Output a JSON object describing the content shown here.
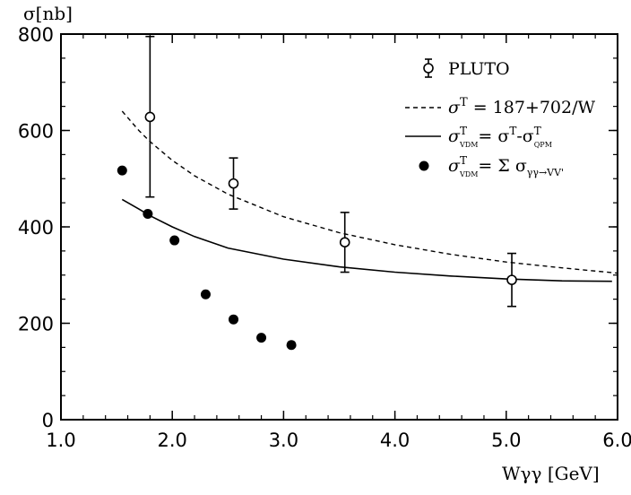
{
  "chart_data": {
    "type": "scatter",
    "y_axis_label": "σ[nb]",
    "x_axis_label": "Wγγ [GeV]",
    "xlim": [
      1.0,
      6.0
    ],
    "ylim": [
      0,
      800
    ],
    "x_ticks": [
      "1.0",
      "2.0",
      "3.0",
      "4.0",
      "5.0",
      "6.0"
    ],
    "y_ticks": [
      "0",
      "200",
      "400",
      "600",
      "800"
    ],
    "legend_position": "top-right",
    "series": [
      {
        "name": "PLUTO",
        "kind": "points-errorbars",
        "marker": "open-circle",
        "points": [
          {
            "x": 1.8,
            "y": 628,
            "ylo": 462,
            "yhi": 795
          },
          {
            "x": 2.55,
            "y": 490,
            "ylo": 437,
            "yhi": 543
          },
          {
            "x": 3.55,
            "y": 368,
            "ylo": 306,
            "yhi": 430
          },
          {
            "x": 5.05,
            "y": 290,
            "ylo": 235,
            "yhi": 345
          }
        ]
      },
      {
        "name": "σT = 187+702/W",
        "kind": "line",
        "style": "dashed",
        "x": [
          1.55,
          1.7,
          1.8,
          2.0,
          2.2,
          2.5,
          3.0,
          3.5,
          4.0,
          4.5,
          5.0,
          5.5,
          6.0
        ],
        "y": [
          640,
          600,
          577,
          538,
          506,
          468,
          421,
          388,
          363,
          343,
          327,
          315,
          304
        ]
      },
      {
        "name": "σTVDM = σT - σTQPM",
        "kind": "line",
        "style": "solid",
        "x": [
          1.55,
          1.7,
          1.8,
          2.0,
          2.2,
          2.5,
          3.0,
          3.5,
          4.0,
          4.5,
          5.0,
          5.5,
          5.95
        ],
        "y": [
          457,
          437,
          423,
          400,
          380,
          356,
          333,
          317,
          306,
          298,
          292,
          288,
          287
        ]
      },
      {
        "name": "σTVDM = Σ σγγ→VV'",
        "kind": "points",
        "marker": "filled-circle",
        "x": [
          1.55,
          1.78,
          2.02,
          2.3,
          2.55,
          2.8,
          3.07
        ],
        "y": [
          517,
          427,
          372,
          260,
          208,
          170,
          155
        ]
      }
    ],
    "legend": {
      "pluto": "PLUTO",
      "dashed_prefix": "σ",
      "dashed_sup": "T",
      "dashed_rest": " = 187+702/W",
      "solid_sigma": "σ",
      "solid_sup": "T",
      "solid_sub": "VDM",
      "solid_mid": "= σ",
      "solid_sup2": "T",
      "solid_minus": "-σ",
      "solid_sup3": "T",
      "solid_sub3": "QPM",
      "dots_sigma": "σ",
      "dots_sup": "T",
      "dots_sub": "VDM",
      "dots_rest": "= Σ σ",
      "dots_sub2": "γγ→VV'"
    }
  }
}
